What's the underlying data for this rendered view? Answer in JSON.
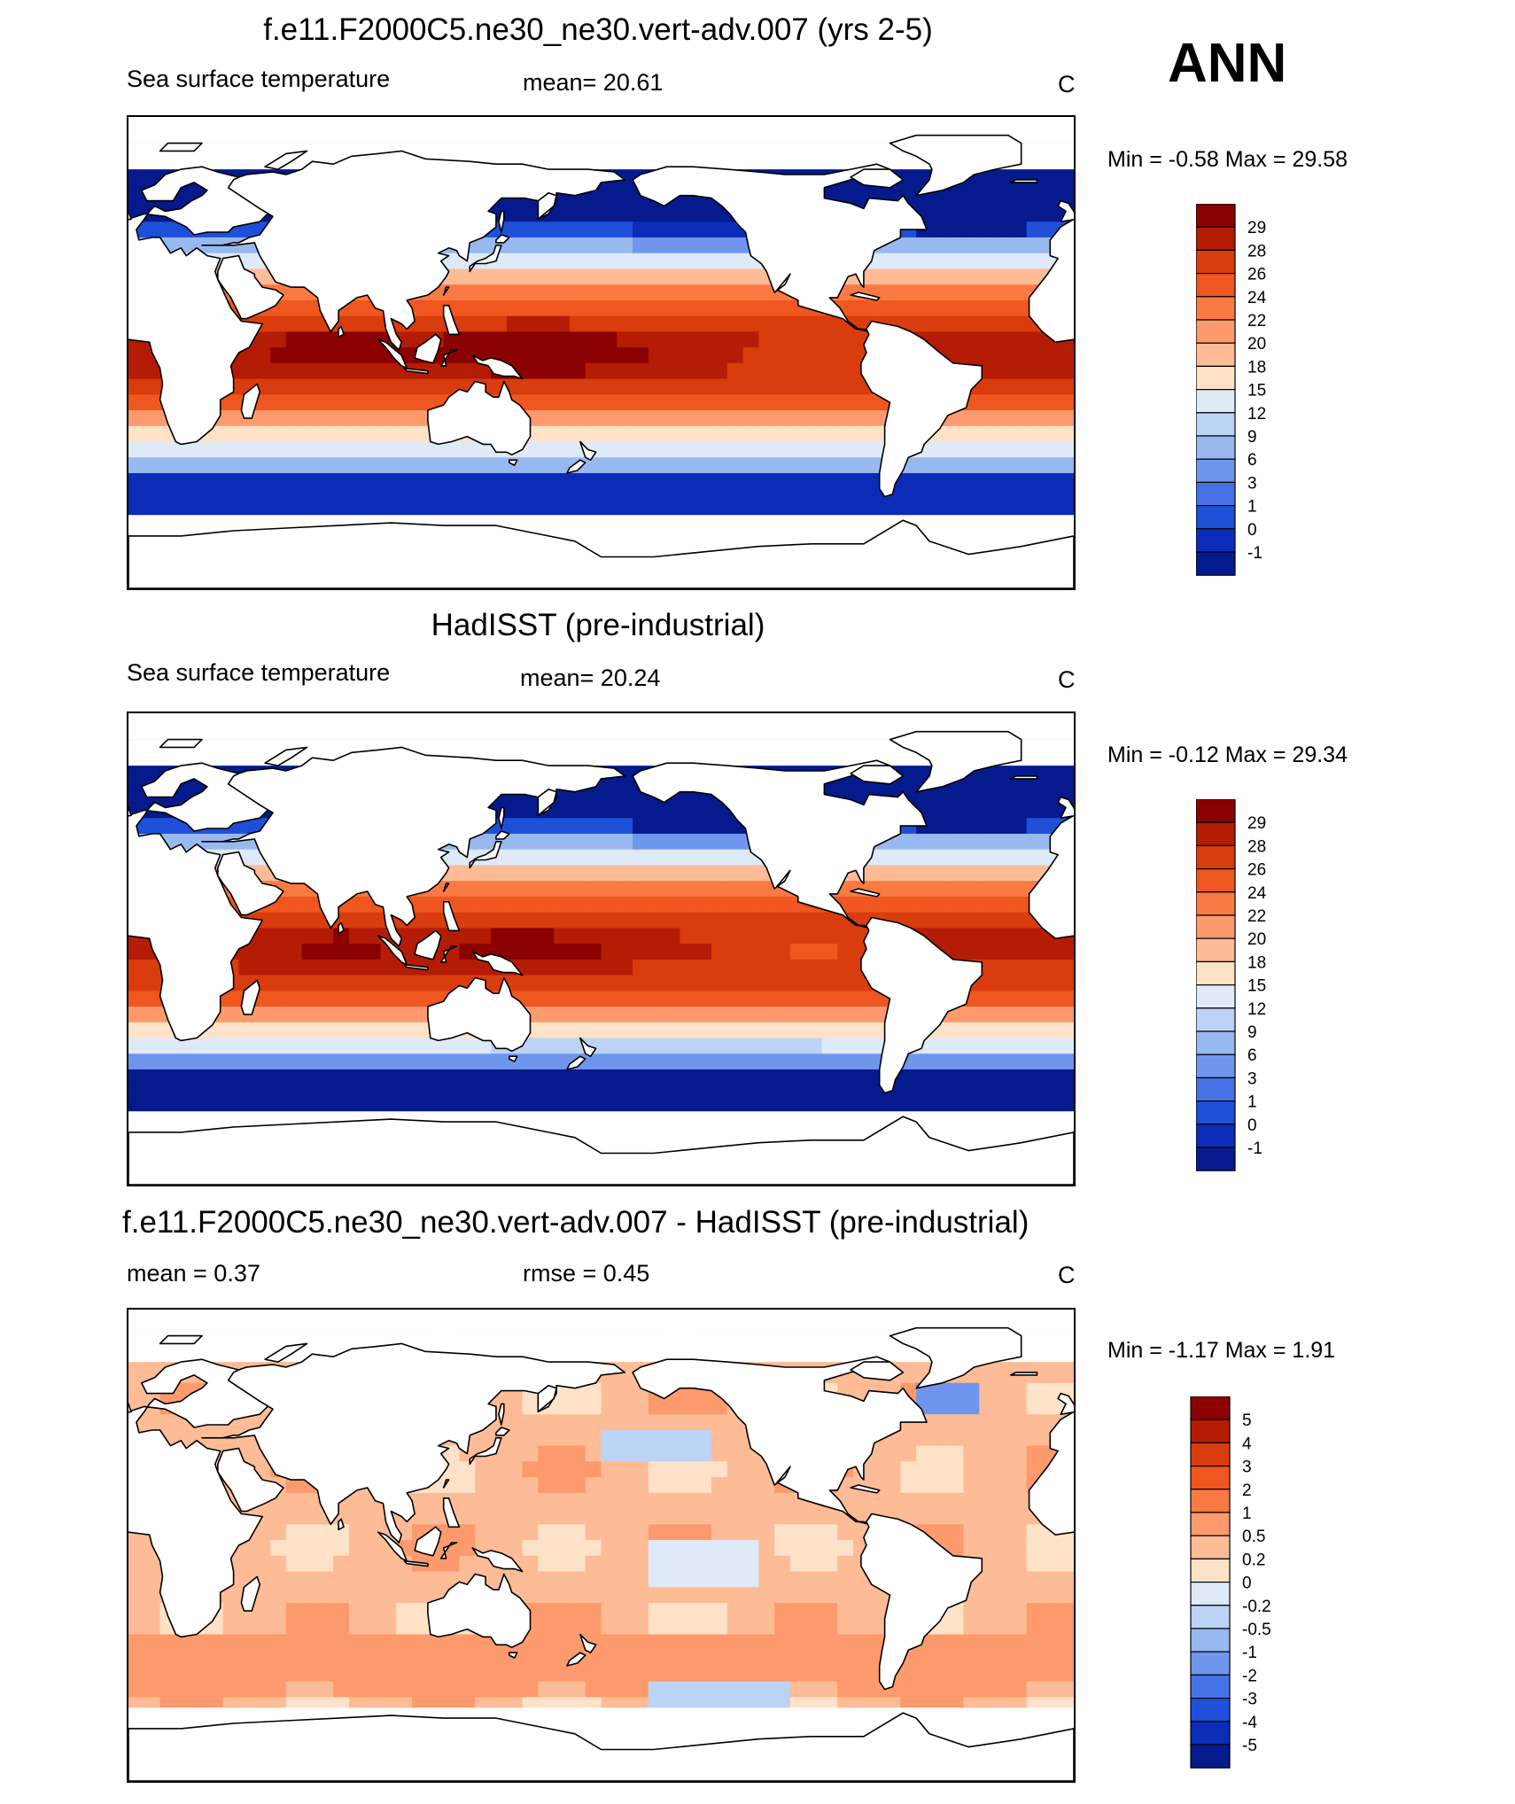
{
  "season": "ANN",
  "panels": [
    {
      "title": "f.e11.F2000C5.ne30_ne30.vert-adv.007 (yrs 2-5)",
      "left_label": "Sea surface temperature",
      "center_label": "mean=  20.61",
      "units": "C",
      "minmax": "Min =  -0.58 Max =  29.58",
      "colorbar": {
        "labels": [
          "29",
          "28",
          "26",
          "24",
          "22",
          "20",
          "18",
          "15",
          "12",
          "9",
          "6",
          "3",
          "1",
          "0",
          "-1"
        ],
        "colors": [
          "#8b0000",
          "#b51c06",
          "#d93d0d",
          "#f0561f",
          "#fb7a44",
          "#fc9a6d",
          "#fdbb96",
          "#fee2c8",
          "#deeaf7",
          "#bcd3f5",
          "#98b8f0",
          "#6f96ec",
          "#4573e6",
          "#1e4fd8",
          "#0a2cb8",
          "#051a8c"
        ]
      },
      "field": "sst_model"
    },
    {
      "title": "HadISST (pre-industrial)",
      "left_label": "Sea surface temperature",
      "center_label": "mean=  20.24",
      "units": "C",
      "minmax": "Min =  -0.12 Max =  29.34",
      "colorbar": {
        "labels": [
          "29",
          "28",
          "26",
          "24",
          "22",
          "20",
          "18",
          "15",
          "12",
          "9",
          "6",
          "3",
          "1",
          "0",
          "-1"
        ],
        "colors": [
          "#8b0000",
          "#b51c06",
          "#d93d0d",
          "#f0561f",
          "#fb7a44",
          "#fc9a6d",
          "#fdbb96",
          "#fee2c8",
          "#deeaf7",
          "#bcd3f5",
          "#98b8f0",
          "#6f96ec",
          "#4573e6",
          "#1e4fd8",
          "#0a2cb8",
          "#051a8c"
        ]
      },
      "field": "sst_obs"
    },
    {
      "title": "f.e11.F2000C5.ne30_ne30.vert-adv.007 - HadISST (pre-industrial)",
      "left_label": "mean =   0.37",
      "center_label": "rmse =   0.45",
      "units": "C",
      "minmax": "Min =  -1.17 Max =   1.91",
      "colorbar": {
        "labels": [
          "5",
          "4",
          "3",
          "2",
          "1",
          "0.5",
          "0.2",
          "0",
          "-0.2",
          "-0.5",
          "-1",
          "-2",
          "-3",
          "-4",
          "-5"
        ],
        "colors": [
          "#8b0000",
          "#b51c06",
          "#d93d0d",
          "#f0561f",
          "#fb7a44",
          "#fc9a6d",
          "#fdbb96",
          "#fee2c8",
          "#deeaf7",
          "#bcd3f5",
          "#98b8f0",
          "#6f96ec",
          "#4573e6",
          "#1e4fd8",
          "#0a2cb8",
          "#051a8c"
        ]
      },
      "field": "diff"
    }
  ]
}
